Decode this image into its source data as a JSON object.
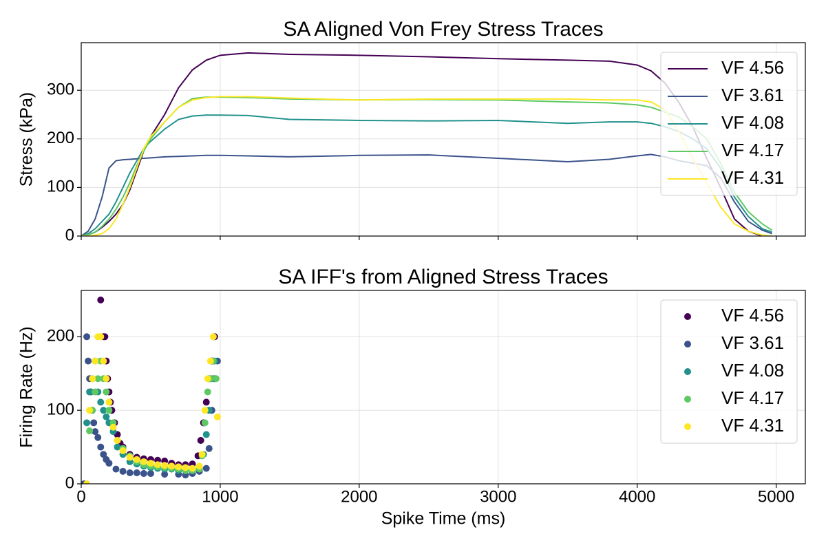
{
  "chart_data": [
    {
      "type": "line",
      "title": "SA Aligned Von Frey Stress Traces",
      "ylabel": "Stress (kPa)",
      "x": [
        0,
        50,
        100,
        150,
        200,
        250,
        300,
        350,
        400,
        450,
        500,
        600,
        700,
        800,
        900,
        1000,
        1200,
        1500,
        2000,
        2500,
        3000,
        3500,
        3800,
        4000,
        4100,
        4200,
        4300,
        4400,
        4500,
        4600,
        4700,
        4800,
        4900,
        4970
      ],
      "series": [
        {
          "name": "VF 4.56",
          "color": "#440154",
          "values": [
            0,
            3,
            8,
            18,
            30,
            45,
            65,
            95,
            135,
            175,
            205,
            250,
            305,
            342,
            362,
            372,
            377,
            374,
            372,
            369,
            365,
            362,
            360,
            352,
            340,
            315,
            275,
            225,
            160,
            100,
            35,
            10,
            0,
            0
          ]
        },
        {
          "name": "VF 3.61",
          "color": "#3b528b",
          "values": [
            0,
            10,
            35,
            80,
            140,
            155,
            157,
            158,
            159,
            160,
            161,
            163,
            164,
            165,
            166,
            166,
            165,
            163,
            166,
            167,
            160,
            153,
            158,
            165,
            168,
            163,
            155,
            150,
            145,
            120,
            70,
            30,
            12,
            5
          ]
        },
        {
          "name": "VF 4.08",
          "color": "#21918c",
          "values": [
            0,
            5,
            15,
            30,
            45,
            70,
            100,
            130,
            155,
            180,
            195,
            220,
            240,
            247,
            249,
            249,
            248,
            240,
            238,
            237,
            238,
            232,
            235,
            235,
            232,
            225,
            215,
            200,
            180,
            140,
            80,
            40,
            15,
            8
          ]
        },
        {
          "name": "VF 4.17",
          "color": "#5ec962",
          "values": [
            0,
            3,
            8,
            20,
            35,
            55,
            80,
            110,
            145,
            175,
            200,
            235,
            265,
            283,
            286,
            286,
            285,
            282,
            280,
            281,
            280,
            276,
            274,
            270,
            265,
            255,
            245,
            225,
            200,
            150,
            90,
            50,
            25,
            12
          ]
        },
        {
          "name": "VF 4.31",
          "color": "#fde725",
          "values": [
            0,
            0,
            2,
            5,
            15,
            35,
            65,
            100,
            140,
            180,
            205,
            235,
            265,
            280,
            285,
            287,
            287,
            284,
            280,
            282,
            282,
            282,
            280,
            280,
            276,
            260,
            215,
            160,
            110,
            60,
            25,
            10,
            2,
            0
          ]
        }
      ],
      "xlim": [
        0,
        5210
      ],
      "xticks": [
        0,
        1000,
        2000,
        3000,
        4000,
        5000
      ],
      "ylim": [
        0,
        398
      ],
      "yticks": [
        0,
        100,
        200,
        300
      ],
      "grid": true,
      "legend": "upper right"
    },
    {
      "type": "scatter",
      "title": "SA IFF's from Aligned Stress Traces",
      "ylabel": "Firing Rate (Hz)",
      "xlabel": "Spike Time (ms)",
      "series": [
        {
          "name": "VF 4.56",
          "color": "#440154",
          "x": [
            140,
            160,
            170,
            180,
            190,
            200,
            210,
            220,
            240,
            260,
            280,
            300,
            350,
            400,
            450,
            500,
            550,
            600,
            650,
            700,
            750,
            800,
            840,
            860,
            880,
            900,
            920,
            940,
            960
          ],
          "values": [
            250,
            200,
            200,
            167,
            143,
            125,
            111,
            100,
            83,
            67,
            55,
            50,
            40,
            36,
            34,
            33,
            32,
            31,
            28,
            26,
            26,
            27,
            38,
            59,
            83,
            111,
            143,
            167,
            200
          ]
        },
        {
          "name": "VF 3.61",
          "color": "#3b528b",
          "x": [
            20,
            40,
            50,
            60,
            70,
            80,
            90,
            100,
            120,
            140,
            160,
            180,
            200,
            250,
            300,
            350,
            400,
            450,
            500,
            600,
            700,
            750,
            800,
            850,
            900,
            920,
            940,
            960,
            980
          ],
          "values": [
            0,
            200,
            167,
            143,
            125,
            100,
            83,
            71,
            63,
            50,
            40,
            33,
            28,
            20,
            17,
            15,
            15,
            14,
            14,
            13,
            13,
            12,
            14,
            17,
            21,
            48,
            100,
            143,
            167
          ]
        },
        {
          "name": "VF 4.08",
          "color": "#21918c",
          "x": [
            40,
            60,
            80,
            100,
            120,
            140,
            160,
            180,
            200,
            230,
            260,
            300,
            350,
            400,
            450,
            500,
            550,
            600,
            650,
            700,
            750,
            800,
            850,
            880,
            900,
            920,
            940,
            960
          ],
          "values": [
            83,
            125,
            143,
            167,
            125,
            111,
            100,
            91,
            83,
            71,
            50,
            40,
            30,
            27,
            24,
            22,
            21,
            20,
            20,
            18,
            18,
            19,
            22,
            40,
            67,
            100,
            143,
            167
          ]
        },
        {
          "name": "VF 4.17",
          "color": "#5ec962",
          "x": [
            60,
            80,
            100,
            120,
            140,
            160,
            180,
            200,
            230,
            260,
            300,
            350,
            400,
            450,
            500,
            550,
            600,
            650,
            700,
            750,
            800,
            850,
            870,
            890,
            910,
            930,
            950,
            970
          ],
          "values": [
            72,
            100,
            125,
            143,
            167,
            143,
            125,
            100,
            83,
            59,
            48,
            38,
            30,
            26,
            24,
            23,
            22,
            21,
            20,
            18,
            18,
            20,
            38,
            83,
            125,
            143,
            167,
            143
          ]
        },
        {
          "name": "VF 4.31",
          "color": "#fde725",
          "x": [
            40,
            60,
            80,
            100,
            120,
            140,
            160,
            180,
            200,
            230,
            260,
            300,
            350,
            400,
            450,
            500,
            550,
            600,
            650,
            700,
            750,
            800,
            850,
            870,
            890,
            910,
            930,
            950,
            980
          ],
          "values": [
            0,
            100,
            143,
            167,
            200,
            200,
            167,
            143,
            111,
            77,
            59,
            45,
            36,
            33,
            30,
            28,
            26,
            25,
            24,
            23,
            22,
            21,
            24,
            40,
            100,
            143,
            167,
            200,
            91
          ]
        }
      ],
      "xlim": [
        0,
        5210
      ],
      "xticks": [
        0,
        1000,
        2000,
        3000,
        4000,
        5000
      ],
      "ylim": [
        0,
        263
      ],
      "yticks": [
        0,
        100,
        200
      ],
      "grid": true,
      "legend": "upper right"
    }
  ]
}
